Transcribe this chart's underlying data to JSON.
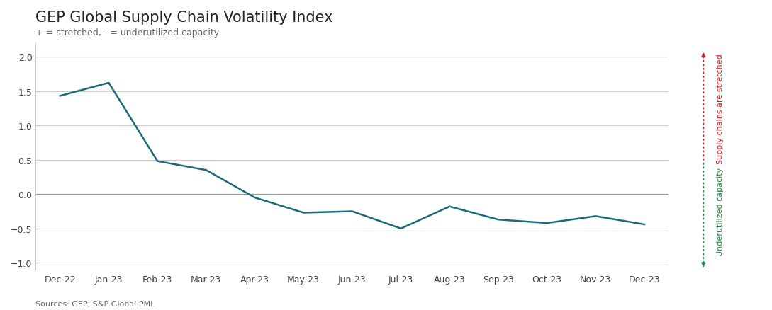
{
  "title": "GEP Global Supply Chain Volatility Index",
  "subtitle": "+ = stretched, - = underutilized capacity",
  "source": "Sources: GEP, S&P Global PMI.",
  "x_labels": [
    "Dec-22",
    "Jan-23",
    "Feb-23",
    "Mar-23",
    "Apr-23",
    "May-23",
    "Jun-23",
    "Jul-23",
    "Aug-23",
    "Sep-23",
    "Oct-23",
    "Nov-23",
    "Dec-23"
  ],
  "y_values": [
    1.43,
    1.62,
    0.48,
    0.35,
    -0.05,
    -0.27,
    -0.25,
    -0.5,
    -0.18,
    -0.37,
    -0.42,
    -0.32,
    -0.44
  ],
  "ylim": [
    -1.1,
    2.2
  ],
  "yticks": [
    -1.0,
    -0.5,
    0.0,
    0.5,
    1.0,
    1.5,
    2.0
  ],
  "line_color": "#1a6b7a",
  "line_width": 1.8,
  "background_color": "#ffffff",
  "grid_color": "#cccccc",
  "zero_line_color": "#999999",
  "title_fontsize": 15,
  "subtitle_fontsize": 9,
  "source_fontsize": 8,
  "tick_fontsize": 9,
  "right_label_stretched": "Supply chains are stretched",
  "right_label_underutilized": "Underutilized capacity",
  "arrow_color_top": "#cc2222",
  "arrow_color_bottom": "#228844"
}
